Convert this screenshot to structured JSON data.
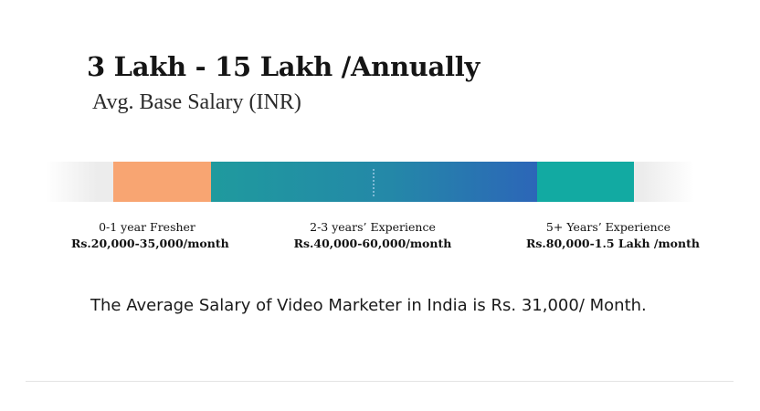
{
  "headline": "3 Lakh - 15 Lakh /Annually",
  "subheadline": "Avg. Base Salary (INR)",
  "salary_bar": {
    "segments": [
      {
        "title": "0-1 year Fresher",
        "range": "Rs.20,000-35,000/month",
        "color": "#f8a572"
      },
      {
        "title": "2-3 years’ Experience",
        "range": "Rs.40,000-60,000/month",
        "color": "#2488a8"
      },
      {
        "title": "5+ Years’ Experience",
        "range": "Rs.80,000-1.5 Lakh /month",
        "color": "#12aaa2"
      }
    ]
  },
  "summary": "The Average Salary of Video Marketer in India is Rs. 31,000/ Month."
}
